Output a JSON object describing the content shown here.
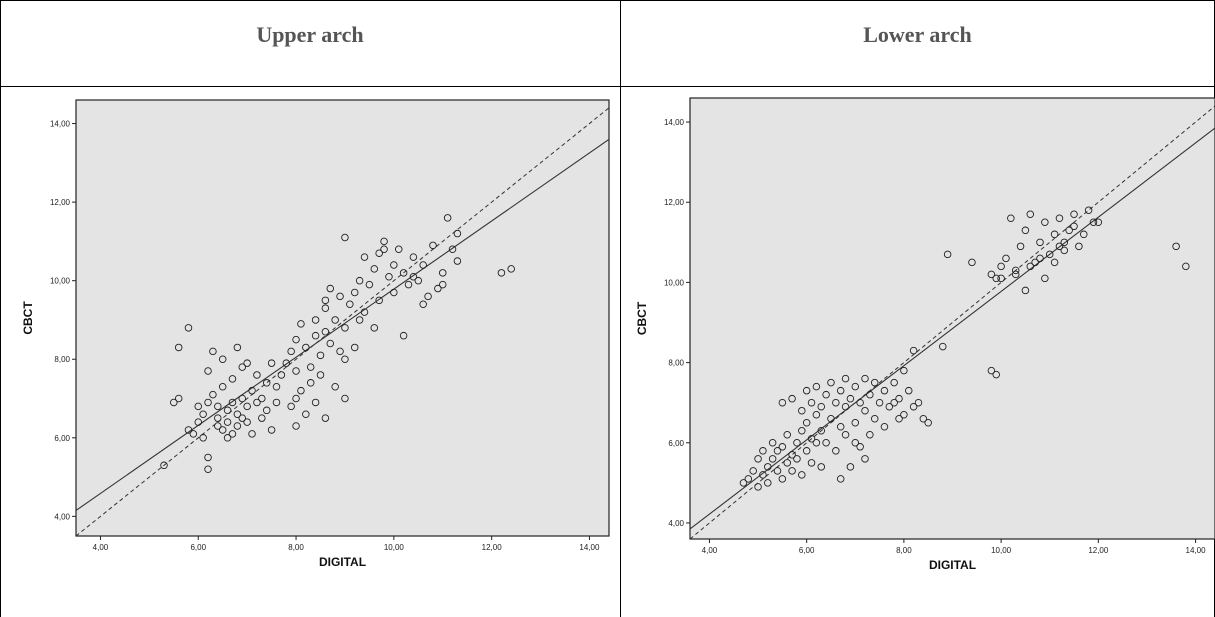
{
  "headers": [
    "Upper arch",
    "Lower arch"
  ],
  "chart_data": [
    {
      "type": "scatter",
      "title": "",
      "panel": "Upper arch",
      "xlabel": "DIGITAL",
      "ylabel": "CBCT",
      "xlim": [
        3.5,
        14.4
      ],
      "ylim": [
        3.5,
        14.6
      ],
      "xticks": [
        "4,00",
        "6,00",
        "8,00",
        "10,00",
        "12,00",
        "14,00"
      ],
      "yticks": [
        "4,00",
        "6,00",
        "8,00",
        "10,00",
        "12,00",
        "14,00"
      ],
      "fit_line": [
        [
          3.5,
          4.15
        ],
        [
          14.4,
          13.6
        ]
      ],
      "identity_line": [
        [
          3.5,
          3.5
        ],
        [
          14.4,
          14.4
        ]
      ],
      "grid": false,
      "points": [
        [
          5.3,
          5.3
        ],
        [
          5.5,
          6.9
        ],
        [
          5.6,
          7.0
        ],
        [
          5.8,
          6.2
        ],
        [
          5.9,
          6.1
        ],
        [
          5.8,
          8.8
        ],
        [
          6.0,
          6.4
        ],
        [
          6.1,
          6.0
        ],
        [
          6.2,
          5.5
        ],
        [
          6.2,
          5.2
        ],
        [
          6.0,
          6.8
        ],
        [
          6.1,
          6.6
        ],
        [
          6.2,
          6.9
        ],
        [
          6.3,
          7.1
        ],
        [
          6.4,
          6.5
        ],
        [
          6.4,
          6.8
        ],
        [
          6.5,
          6.2
        ],
        [
          6.5,
          7.3
        ],
        [
          6.6,
          6.0
        ],
        [
          6.6,
          6.7
        ],
        [
          6.7,
          6.9
        ],
        [
          6.7,
          7.5
        ],
        [
          6.8,
          6.3
        ],
        [
          6.8,
          6.6
        ],
        [
          6.9,
          7.0
        ],
        [
          6.9,
          7.8
        ],
        [
          7.0,
          6.8
        ],
        [
          7.0,
          6.4
        ],
        [
          7.1,
          7.2
        ],
        [
          7.1,
          6.1
        ],
        [
          7.2,
          6.9
        ],
        [
          7.2,
          7.6
        ],
        [
          7.3,
          6.5
        ],
        [
          7.3,
          7.0
        ],
        [
          7.4,
          6.7
        ],
        [
          7.4,
          7.4
        ],
        [
          7.5,
          6.2
        ],
        [
          7.5,
          7.9
        ],
        [
          7.6,
          6.9
        ],
        [
          7.6,
          7.3
        ],
        [
          6.3,
          8.2
        ],
        [
          6.5,
          8.0
        ],
        [
          6.8,
          8.3
        ],
        [
          6.2,
          7.7
        ],
        [
          5.6,
          8.3
        ],
        [
          7.0,
          7.9
        ],
        [
          6.6,
          6.4
        ],
        [
          6.4,
          6.3
        ],
        [
          6.7,
          6.1
        ],
        [
          6.9,
          6.5
        ],
        [
          7.7,
          7.6
        ],
        [
          7.8,
          7.9
        ],
        [
          7.9,
          8.2
        ],
        [
          8.0,
          8.5
        ],
        [
          8.0,
          7.7
        ],
        [
          8.1,
          8.9
        ],
        [
          8.2,
          8.3
        ],
        [
          8.3,
          7.8
        ],
        [
          8.4,
          8.6
        ],
        [
          8.4,
          9.0
        ],
        [
          8.5,
          8.1
        ],
        [
          8.6,
          8.7
        ],
        [
          8.6,
          9.3
        ],
        [
          8.7,
          8.4
        ],
        [
          8.8,
          9.0
        ],
        [
          8.9,
          8.2
        ],
        [
          8.9,
          9.6
        ],
        [
          9.0,
          7.0
        ],
        [
          9.0,
          8.8
        ],
        [
          9.1,
          9.4
        ],
        [
          8.0,
          7.0
        ],
        [
          8.2,
          6.6
        ],
        [
          8.4,
          6.9
        ],
        [
          8.6,
          6.5
        ],
        [
          8.8,
          7.3
        ],
        [
          8.0,
          6.3
        ],
        [
          8.3,
          7.4
        ],
        [
          7.9,
          6.8
        ],
        [
          8.1,
          7.2
        ],
        [
          8.5,
          7.6
        ],
        [
          9.2,
          9.7
        ],
        [
          9.3,
          10.0
        ],
        [
          9.4,
          9.2
        ],
        [
          9.5,
          9.9
        ],
        [
          9.6,
          10.3
        ],
        [
          9.7,
          9.5
        ],
        [
          9.8,
          10.8
        ],
        [
          9.8,
          11.0
        ],
        [
          9.9,
          10.1
        ],
        [
          10.0,
          10.4
        ],
        [
          10.0,
          9.7
        ],
        [
          10.1,
          10.8
        ],
        [
          10.2,
          8.6
        ],
        [
          10.2,
          10.2
        ],
        [
          10.3,
          9.9
        ],
        [
          10.4,
          10.6
        ],
        [
          10.5,
          10.0
        ],
        [
          10.6,
          10.4
        ],
        [
          10.7,
          9.6
        ],
        [
          10.8,
          10.9
        ],
        [
          10.9,
          9.8
        ],
        [
          11.0,
          10.2
        ],
        [
          11.1,
          11.6
        ],
        [
          11.2,
          10.8
        ],
        [
          11.3,
          11.2
        ],
        [
          11.3,
          10.5
        ],
        [
          11.0,
          9.9
        ],
        [
          9.0,
          11.1
        ],
        [
          9.4,
          10.6
        ],
        [
          9.6,
          8.8
        ],
        [
          12.2,
          10.2
        ],
        [
          12.4,
          10.3
        ],
        [
          9.0,
          8.0
        ],
        [
          9.2,
          8.3
        ],
        [
          8.7,
          9.8
        ],
        [
          9.7,
          10.7
        ],
        [
          10.4,
          10.1
        ],
        [
          10.6,
          9.4
        ],
        [
          8.6,
          9.5
        ],
        [
          9.3,
          9.0
        ]
      ]
    },
    {
      "type": "scatter",
      "title": "",
      "panel": "Lower arch",
      "xlabel": "DIGITAL",
      "ylabel": "CBCT",
      "xlim": [
        3.6,
        14.4
      ],
      "ylim": [
        3.6,
        14.6
      ],
      "xticks": [
        "4,00",
        "6,00",
        "8,00",
        "10,00",
        "12,00",
        "14,00"
      ],
      "yticks": [
        "4,00",
        "6,00",
        "8,00",
        "10,00",
        "12,00",
        "14,00"
      ],
      "fit_line": [
        [
          3.6,
          3.85
        ],
        [
          14.4,
          13.85
        ]
      ],
      "identity_line": [
        [
          3.6,
          3.6
        ],
        [
          14.4,
          14.4
        ]
      ],
      "grid": false,
      "points": [
        [
          4.7,
          5.0
        ],
        [
          4.8,
          5.1
        ],
        [
          4.9,
          5.3
        ],
        [
          5.0,
          4.9
        ],
        [
          5.0,
          5.6
        ],
        [
          5.1,
          5.2
        ],
        [
          5.1,
          5.8
        ],
        [
          5.2,
          5.4
        ],
        [
          5.2,
          5.0
        ],
        [
          5.3,
          5.6
        ],
        [
          5.3,
          6.0
        ],
        [
          5.4,
          5.3
        ],
        [
          5.4,
          5.8
        ],
        [
          5.5,
          5.1
        ],
        [
          5.5,
          5.9
        ],
        [
          5.6,
          5.5
        ],
        [
          5.6,
          6.2
        ],
        [
          5.7,
          5.7
        ],
        [
          5.7,
          5.3
        ],
        [
          5.8,
          6.0
        ],
        [
          5.8,
          5.6
        ],
        [
          5.9,
          6.3
        ],
        [
          5.9,
          5.2
        ],
        [
          6.0,
          5.8
        ],
        [
          6.0,
          6.5
        ],
        [
          6.1,
          6.1
        ],
        [
          6.1,
          5.5
        ],
        [
          6.2,
          6.7
        ],
        [
          6.2,
          6.0
        ],
        [
          6.3,
          5.4
        ],
        [
          5.5,
          7.0
        ],
        [
          5.7,
          7.1
        ],
        [
          5.9,
          6.8
        ],
        [
          6.0,
          7.3
        ],
        [
          6.1,
          7.0
        ],
        [
          6.2,
          7.4
        ],
        [
          6.3,
          6.9
        ],
        [
          6.4,
          7.2
        ],
        [
          6.5,
          6.6
        ],
        [
          6.5,
          7.5
        ],
        [
          6.6,
          7.0
        ],
        [
          6.7,
          6.4
        ],
        [
          6.7,
          7.3
        ],
        [
          6.8,
          6.9
        ],
        [
          6.8,
          7.6
        ],
        [
          6.9,
          7.1
        ],
        [
          7.0,
          6.5
        ],
        [
          7.0,
          7.4
        ],
        [
          7.1,
          7.0
        ],
        [
          7.2,
          7.6
        ],
        [
          7.2,
          6.8
        ],
        [
          7.3,
          7.2
        ],
        [
          7.4,
          6.6
        ],
        [
          7.4,
          7.5
        ],
        [
          7.5,
          7.0
        ],
        [
          7.6,
          6.4
        ],
        [
          7.6,
          7.3
        ],
        [
          7.7,
          6.9
        ],
        [
          7.8,
          7.5
        ],
        [
          7.9,
          7.1
        ],
        [
          6.4,
          6.0
        ],
        [
          6.6,
          5.8
        ],
        [
          6.8,
          6.2
        ],
        [
          6.9,
          5.4
        ],
        [
          7.0,
          6.0
        ],
        [
          7.2,
          5.6
        ],
        [
          7.3,
          6.2
        ],
        [
          6.3,
          6.3
        ],
        [
          6.7,
          5.1
        ],
        [
          7.1,
          5.9
        ],
        [
          8.0,
          6.7
        ],
        [
          8.1,
          7.3
        ],
        [
          8.2,
          8.3
        ],
        [
          8.3,
          7.0
        ],
        [
          8.4,
          6.6
        ],
        [
          8.5,
          6.5
        ],
        [
          8.0,
          7.8
        ],
        [
          7.9,
          6.6
        ],
        [
          8.2,
          6.9
        ],
        [
          7.8,
          7.0
        ],
        [
          8.8,
          8.4
        ],
        [
          8.9,
          10.7
        ],
        [
          9.4,
          10.5
        ],
        [
          9.8,
          10.2
        ],
        [
          9.8,
          7.8
        ],
        [
          9.9,
          7.7
        ],
        [
          10.0,
          10.1
        ],
        [
          10.1,
          10.6
        ],
        [
          10.2,
          11.6
        ],
        [
          10.3,
          10.3
        ],
        [
          10.4,
          10.9
        ],
        [
          10.5,
          9.8
        ],
        [
          10.5,
          11.3
        ],
        [
          10.6,
          11.7
        ],
        [
          10.7,
          10.5
        ],
        [
          10.8,
          11.0
        ],
        [
          10.9,
          11.5
        ],
        [
          11.0,
          10.7
        ],
        [
          11.1,
          11.2
        ],
        [
          11.2,
          10.9
        ],
        [
          11.2,
          11.6
        ],
        [
          11.3,
          11.0
        ],
        [
          11.4,
          11.3
        ],
        [
          11.5,
          11.7
        ],
        [
          11.6,
          10.9
        ],
        [
          11.7,
          11.2
        ],
        [
          11.8,
          11.8
        ],
        [
          11.9,
          11.5
        ],
        [
          12.0,
          11.5
        ],
        [
          10.6,
          10.4
        ],
        [
          10.9,
          10.1
        ],
        [
          11.1,
          10.5
        ],
        [
          10.3,
          10.2
        ],
        [
          10.0,
          10.4
        ],
        [
          9.9,
          10.1
        ],
        [
          13.6,
          10.9
        ],
        [
          13.8,
          10.4
        ],
        [
          11.5,
          11.4
        ],
        [
          10.8,
          10.6
        ],
        [
          11.3,
          10.8
        ]
      ]
    }
  ]
}
